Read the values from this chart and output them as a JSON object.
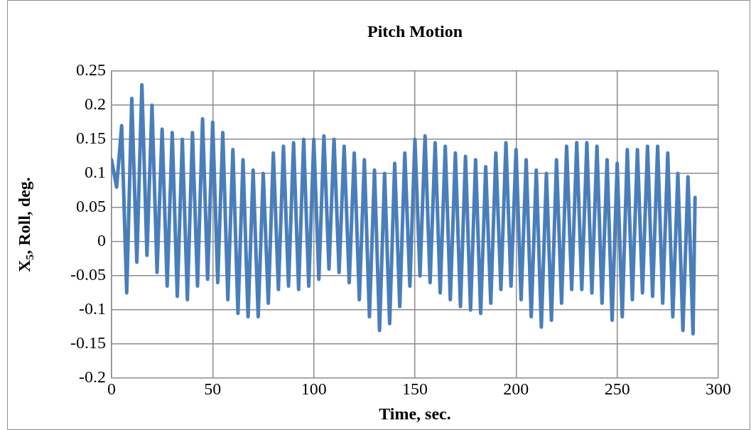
{
  "chart_data": {
    "type": "line",
    "title": "Pitch Motion",
    "xlabel": "Time, sec.",
    "ylabel": "X$_{5}$, Roll, deg.",
    "xlim": [
      0,
      300
    ],
    "xticks": [
      0,
      50,
      100,
      150,
      200,
      250,
      300
    ],
    "ylim": [
      -0.2,
      0.25
    ],
    "yticks": [
      -0.2,
      -0.15,
      -0.1,
      -0.05,
      0,
      0.05,
      0.1,
      0.15,
      0.2,
      0.25
    ],
    "grid": true,
    "legend": false,
    "marker": "none",
    "line_style": "solid",
    "series": [
      {
        "color": "#4a7ebb",
        "x": [
          0,
          2.5,
          5,
          7.5,
          10,
          12.5,
          15,
          17.5,
          20,
          22.5,
          25,
          27.5,
          30,
          32.5,
          35,
          37.5,
          40,
          42.5,
          45,
          47.5,
          50,
          52.5,
          55,
          57.5,
          60,
          62.5,
          65,
          67.5,
          70,
          72.5,
          75,
          77.5,
          80,
          82.5,
          85,
          87.5,
          90,
          92.5,
          95,
          97.5,
          100,
          102.5,
          105,
          107.5,
          110,
          112.5,
          115,
          117.5,
          120,
          122.5,
          125,
          127.5,
          130,
          132.5,
          135,
          137.5,
          140,
          142.5,
          145,
          147.5,
          150,
          152.5,
          155,
          157.5,
          160,
          162.5,
          165,
          167.5,
          170,
          172.5,
          175,
          177.5,
          180,
          182.5,
          185,
          187.5,
          190,
          192.5,
          195,
          197.5,
          200,
          202.5,
          205,
          207.5,
          210,
          212.5,
          215,
          217.5,
          220,
          222.5,
          225,
          227.5,
          230,
          232.5,
          235,
          237.5,
          240,
          242.5,
          245,
          247.5,
          250,
          252.5,
          255,
          257.5,
          260,
          262.5,
          265,
          267.5,
          270,
          272.5,
          275,
          277.5,
          280,
          282.5,
          285,
          287.5,
          288.5
        ],
        "values": [
          0.12,
          0.08,
          0.17,
          -0.075,
          0.21,
          -0.03,
          0.23,
          -0.02,
          0.2,
          -0.045,
          0.165,
          -0.065,
          0.16,
          -0.08,
          0.15,
          -0.085,
          0.16,
          -0.065,
          0.18,
          -0.055,
          0.175,
          -0.06,
          0.16,
          -0.085,
          0.135,
          -0.105,
          0.12,
          -0.11,
          0.105,
          -0.11,
          0.1,
          -0.09,
          0.13,
          -0.07,
          0.14,
          -0.065,
          0.145,
          -0.07,
          0.15,
          -0.065,
          0.15,
          -0.055,
          0.155,
          -0.04,
          0.15,
          -0.045,
          0.14,
          -0.06,
          0.13,
          -0.085,
          0.12,
          -0.11,
          0.105,
          -0.13,
          0.1,
          -0.12,
          0.115,
          -0.095,
          0.13,
          -0.065,
          0.15,
          -0.05,
          0.155,
          -0.06,
          0.145,
          -0.075,
          0.14,
          -0.085,
          0.13,
          -0.095,
          0.125,
          -0.1,
          0.12,
          -0.105,
          0.11,
          -0.09,
          0.13,
          -0.07,
          0.145,
          -0.065,
          0.135,
          -0.085,
          0.12,
          -0.11,
          0.105,
          -0.125,
          0.1,
          -0.115,
          0.12,
          -0.09,
          0.14,
          -0.07,
          0.145,
          -0.07,
          0.145,
          -0.075,
          0.14,
          -0.09,
          0.12,
          -0.115,
          0.115,
          -0.11,
          0.135,
          -0.085,
          0.135,
          -0.075,
          0.14,
          -0.08,
          0.14,
          -0.09,
          0.13,
          -0.11,
          0.1,
          -0.13,
          0.095,
          -0.135,
          0.065
        ]
      }
    ]
  }
}
